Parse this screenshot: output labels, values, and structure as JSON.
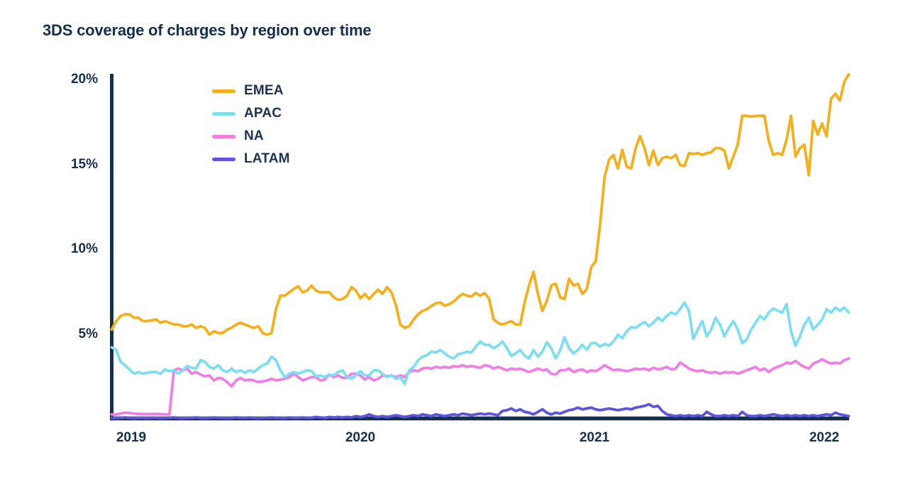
{
  "title": "3DS coverage of charges by region over time",
  "colors": {
    "background": "#FFFFFF",
    "text_navy": "#14304E",
    "axis_navy": "#15304C",
    "emea": "#F3B01C",
    "apac": "#7EDEF1",
    "na": "#EF7FE5",
    "latam": "#5D55DF"
  },
  "chart_data": {
    "type": "line",
    "title": "3DS coverage of charges by region over time",
    "xlabel": "",
    "ylabel": "",
    "unit": "%",
    "grid": false,
    "legend_position": "inside-top-left",
    "x_axis": {
      "ticks": [
        "2019",
        "2020",
        "2021",
        "2022"
      ],
      "range_years": [
        2018.92,
        2022.12
      ]
    },
    "y_axis": {
      "ticks": [
        "5%",
        "10%",
        "15%",
        "20%"
      ],
      "tick_values": [
        5,
        10,
        15,
        20
      ],
      "ylim": [
        0,
        20.5
      ]
    },
    "sampling": "weekly",
    "series": [
      {
        "name": "EMEA",
        "color": "#F3B01C",
        "values": [
          5.3,
          5.8,
          6.1,
          6.2,
          6.2,
          6.0,
          6.0,
          5.8,
          5.8,
          5.85,
          5.9,
          5.7,
          5.8,
          5.7,
          5.6,
          5.6,
          5.5,
          5.5,
          5.6,
          5.4,
          5.5,
          5.4,
          5.0,
          5.2,
          5.1,
          5.1,
          5.3,
          5.4,
          5.6,
          5.7,
          5.6,
          5.5,
          5.4,
          5.5,
          5.1,
          5.0,
          5.1,
          6.5,
          7.3,
          7.3,
          7.5,
          7.7,
          7.85,
          7.5,
          7.6,
          7.9,
          7.6,
          7.5,
          7.5,
          7.5,
          7.2,
          7.05,
          7.1,
          7.3,
          7.8,
          7.6,
          7.15,
          7.4,
          7.1,
          7.4,
          7.65,
          7.4,
          7.8,
          7.5,
          6.75,
          5.6,
          5.4,
          5.5,
          5.9,
          6.2,
          6.4,
          6.5,
          6.7,
          6.85,
          6.9,
          6.7,
          6.8,
          6.95,
          7.2,
          7.4,
          7.3,
          7.25,
          7.45,
          7.3,
          7.45,
          7.1,
          5.9,
          5.7,
          5.6,
          5.7,
          5.8,
          5.6,
          5.6,
          6.9,
          7.9,
          8.7,
          7.4,
          6.4,
          7.0,
          7.9,
          8.0,
          7.2,
          7.1,
          8.3,
          7.9,
          8.0,
          7.4,
          7.7,
          9.0,
          9.3,
          11.5,
          14.3,
          15.3,
          15.6,
          14.8,
          15.9,
          14.9,
          14.8,
          16.0,
          16.7,
          16.0,
          15.0,
          15.85,
          15.0,
          15.4,
          15.5,
          15.4,
          15.6,
          15.0,
          14.95,
          15.7,
          15.65,
          15.7,
          15.6,
          15.7,
          15.75,
          16.0,
          16.0,
          15.85,
          14.8,
          15.5,
          16.2,
          17.9,
          17.9,
          17.85,
          17.9,
          17.9,
          17.9,
          16.4,
          15.6,
          15.7,
          15.6,
          16.5,
          17.9,
          15.5,
          16.0,
          16.2,
          14.4,
          17.6,
          16.8,
          17.45,
          16.7,
          18.9,
          19.2,
          18.8,
          19.9,
          20.35
        ]
      },
      {
        "name": "APAC",
        "color": "#7EDEF1",
        "values": [
          4.25,
          4.1,
          3.4,
          3.2,
          2.95,
          2.7,
          2.8,
          2.7,
          2.75,
          2.8,
          2.8,
          2.7,
          2.95,
          2.85,
          2.9,
          2.7,
          2.9,
          3.15,
          3.05,
          3.0,
          3.5,
          3.4,
          3.1,
          3.0,
          3.2,
          2.9,
          2.8,
          3.0,
          2.8,
          2.9,
          2.75,
          2.9,
          2.8,
          3.0,
          3.2,
          3.3,
          3.7,
          3.5,
          2.9,
          2.5,
          2.7,
          2.8,
          2.7,
          2.8,
          2.9,
          2.85,
          2.55,
          2.6,
          2.5,
          2.65,
          2.6,
          2.8,
          2.9,
          2.5,
          2.4,
          2.6,
          2.85,
          2.6,
          2.6,
          2.9,
          2.9,
          2.7,
          2.5,
          2.6,
          2.4,
          2.5,
          2.1,
          2.9,
          3.1,
          3.5,
          3.7,
          3.8,
          4.0,
          3.95,
          4.1,
          3.9,
          3.7,
          3.6,
          3.85,
          3.9,
          4.0,
          3.95,
          4.3,
          4.6,
          4.4,
          4.4,
          4.2,
          4.35,
          4.6,
          4.2,
          3.75,
          3.9,
          4.1,
          3.75,
          3.6,
          4.1,
          3.7,
          4.0,
          4.55,
          4.2,
          3.6,
          4.1,
          4.85,
          4.2,
          3.9,
          4.1,
          4.4,
          4.1,
          4.5,
          4.5,
          4.3,
          4.45,
          4.35,
          4.6,
          5.0,
          4.8,
          5.2,
          5.45,
          5.4,
          5.6,
          5.75,
          5.5,
          5.7,
          6.0,
          5.8,
          6.1,
          6.3,
          6.2,
          6.5,
          6.9,
          6.4,
          4.75,
          5.3,
          5.8,
          4.9,
          5.3,
          6.0,
          5.6,
          4.9,
          5.4,
          5.8,
          5.3,
          4.5,
          4.7,
          5.3,
          5.7,
          6.1,
          5.9,
          6.3,
          6.55,
          6.4,
          6.3,
          6.8,
          5.2,
          4.35,
          4.9,
          5.6,
          6.0,
          5.3,
          5.6,
          5.9,
          6.5,
          6.3,
          6.6,
          6.4,
          6.6,
          6.3
        ]
      },
      {
        "name": "NA",
        "color": "#EF7FE5",
        "values": [
          0.3,
          0.3,
          0.35,
          0.4,
          0.38,
          0.35,
          0.33,
          0.33,
          0.32,
          0.33,
          0.33,
          0.32,
          0.3,
          0.3,
          2.9,
          3.0,
          2.9,
          3.0,
          2.7,
          2.8,
          2.65,
          2.55,
          2.6,
          2.3,
          2.45,
          2.4,
          2.2,
          1.95,
          2.3,
          2.45,
          2.3,
          2.35,
          2.3,
          2.2,
          2.25,
          2.3,
          2.4,
          2.3,
          2.35,
          2.4,
          2.5,
          2.7,
          2.5,
          2.3,
          2.4,
          2.5,
          2.5,
          2.3,
          2.35,
          2.65,
          2.5,
          2.6,
          2.45,
          2.45,
          2.7,
          2.7,
          2.6,
          2.35,
          2.5,
          2.3,
          2.4,
          2.6,
          2.55,
          2.6,
          2.5,
          2.6,
          2.5,
          2.8,
          2.9,
          2.85,
          3.0,
          3.05,
          3.0,
          3.1,
          3.05,
          3.1,
          3.05,
          3.15,
          3.1,
          3.2,
          3.1,
          3.15,
          3.1,
          3.05,
          3.2,
          3.15,
          3.0,
          3.1,
          3.0,
          2.9,
          3.0,
          2.95,
          3.0,
          2.9,
          2.8,
          2.9,
          3.0,
          2.9,
          2.95,
          2.7,
          2.65,
          2.9,
          2.9,
          3.0,
          2.8,
          2.9,
          2.95,
          2.8,
          2.9,
          2.85,
          3.0,
          3.2,
          3.05,
          2.9,
          2.95,
          2.9,
          2.85,
          2.9,
          3.0,
          2.95,
          3.0,
          2.9,
          3.05,
          2.95,
          3.0,
          3.1,
          2.95,
          3.0,
          3.35,
          3.2,
          3.0,
          2.9,
          2.85,
          2.9,
          2.8,
          2.75,
          2.8,
          2.7,
          2.8,
          2.75,
          2.8,
          2.7,
          2.8,
          2.9,
          3.0,
          3.1,
          2.9,
          3.0,
          2.8,
          3.0,
          3.1,
          3.2,
          3.35,
          3.3,
          3.45,
          3.25,
          3.1,
          3.0,
          3.3,
          3.4,
          3.55,
          3.4,
          3.3,
          3.35,
          3.3,
          3.5,
          3.6
        ]
      },
      {
        "name": "LATAM",
        "color": "#5D55DF",
        "values": [
          0.1,
          0.08,
          0.1,
          0.12,
          0.1,
          0.08,
          0.1,
          0.1,
          0.08,
          0.1,
          0.1,
          0.08,
          0.1,
          0.1,
          0.12,
          0.1,
          0.08,
          0.1,
          0.1,
          0.12,
          0.1,
          0.08,
          0.1,
          0.12,
          0.1,
          0.1,
          0.08,
          0.1,
          0.12,
          0.1,
          0.1,
          0.12,
          0.1,
          0.08,
          0.1,
          0.1,
          0.12,
          0.1,
          0.1,
          0.08,
          0.12,
          0.1,
          0.1,
          0.12,
          0.1,
          0.1,
          0.15,
          0.12,
          0.1,
          0.15,
          0.12,
          0.15,
          0.12,
          0.15,
          0.12,
          0.2,
          0.15,
          0.2,
          0.3,
          0.2,
          0.15,
          0.2,
          0.15,
          0.2,
          0.25,
          0.2,
          0.15,
          0.2,
          0.25,
          0.2,
          0.3,
          0.25,
          0.2,
          0.3,
          0.25,
          0.2,
          0.25,
          0.3,
          0.25,
          0.35,
          0.3,
          0.25,
          0.3,
          0.35,
          0.3,
          0.35,
          0.3,
          0.25,
          0.5,
          0.55,
          0.65,
          0.5,
          0.6,
          0.45,
          0.4,
          0.3,
          0.45,
          0.6,
          0.4,
          0.3,
          0.4,
          0.35,
          0.45,
          0.55,
          0.6,
          0.7,
          0.6,
          0.65,
          0.7,
          0.6,
          0.55,
          0.6,
          0.65,
          0.6,
          0.55,
          0.6,
          0.65,
          0.6,
          0.7,
          0.75,
          0.8,
          0.9,
          0.75,
          0.8,
          0.5,
          0.3,
          0.25,
          0.2,
          0.25,
          0.2,
          0.25,
          0.2,
          0.25,
          0.2,
          0.45,
          0.3,
          0.2,
          0.2,
          0.25,
          0.2,
          0.25,
          0.2,
          0.45,
          0.25,
          0.2,
          0.2,
          0.25,
          0.2,
          0.25,
          0.3,
          0.25,
          0.2,
          0.25,
          0.2,
          0.25,
          0.2,
          0.25,
          0.2,
          0.25,
          0.2,
          0.25,
          0.3,
          0.25,
          0.4,
          0.3,
          0.25,
          0.2
        ]
      }
    ]
  }
}
